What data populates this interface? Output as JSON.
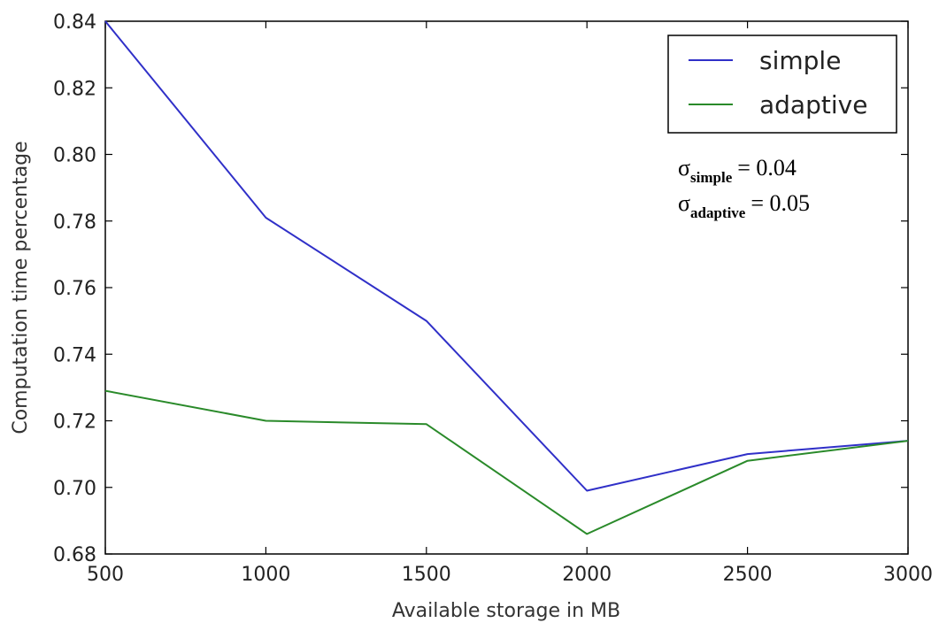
{
  "chart_data": {
    "type": "line",
    "title": "",
    "xlabel": "Available storage in MB",
    "ylabel": "Computation time percentage",
    "x": [
      500,
      1000,
      1500,
      2000,
      2500,
      3000
    ],
    "xlim": [
      500,
      3000
    ],
    "ylim": [
      0.68,
      0.84
    ],
    "xticks": [
      500,
      1000,
      1500,
      2000,
      2500,
      3000
    ],
    "yticks": [
      0.68,
      0.7,
      0.72,
      0.74,
      0.76,
      0.78,
      0.8,
      0.82,
      0.84
    ],
    "grid": false,
    "legend_position": "top-right",
    "series": [
      {
        "name": "simple",
        "color": "#3030c8",
        "values": [
          0.84,
          0.781,
          0.75,
          0.699,
          0.71,
          0.714
        ]
      },
      {
        "name": "adaptive",
        "color": "#2a8a2a",
        "values": [
          0.729,
          0.72,
          0.719,
          0.686,
          0.708,
          0.714
        ]
      }
    ],
    "annotations": [
      {
        "symbol": "σ",
        "subscript": "simple",
        "text": "= 0.04"
      },
      {
        "symbol": "σ",
        "subscript": "adaptive",
        "text": "= 0.05"
      }
    ]
  }
}
